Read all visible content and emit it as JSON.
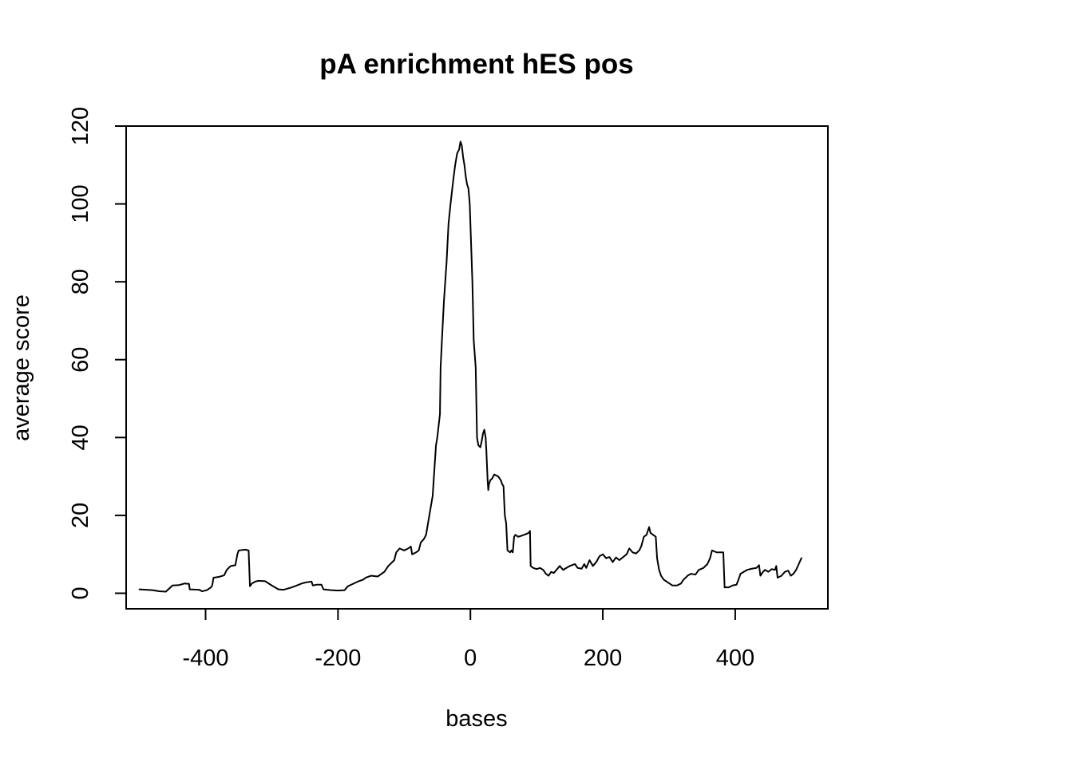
{
  "chart_data": {
    "type": "line",
    "title": "pA enrichment hES pos",
    "xlabel": "bases",
    "ylabel": "average score",
    "xlim": [
      -520,
      540
    ],
    "ylim": [
      -4,
      120
    ],
    "grid": false,
    "legend": "none",
    "x_ticks": [
      {
        "value": -400,
        "label": "-400"
      },
      {
        "value": -200,
        "label": "-200"
      },
      {
        "value": 0,
        "label": "0"
      },
      {
        "value": 200,
        "label": "200"
      },
      {
        "value": 400,
        "label": "400"
      }
    ],
    "y_ticks": [
      {
        "value": 0,
        "label": "0"
      },
      {
        "value": 20,
        "label": "20"
      },
      {
        "value": 40,
        "label": "40"
      },
      {
        "value": 60,
        "label": "60"
      },
      {
        "value": 80,
        "label": "80"
      },
      {
        "value": 100,
        "label": "100"
      },
      {
        "value": 120,
        "label": "120"
      }
    ],
    "series": [
      {
        "color": "#000000",
        "points": [
          [
            -500,
            1
          ],
          [
            -490,
            0.9
          ],
          [
            -480,
            0.8
          ],
          [
            -470,
            0.5
          ],
          [
            -460,
            0.4
          ],
          [
            -455,
            1.2
          ],
          [
            -450,
            2
          ],
          [
            -440,
            2.1
          ],
          [
            -432,
            2.5
          ],
          [
            -425,
            2.4
          ],
          [
            -424,
            1
          ],
          [
            -410,
            0.9
          ],
          [
            -405,
            0.5
          ],
          [
            -398,
            0.8
          ],
          [
            -392,
            1.5
          ],
          [
            -390,
            2
          ],
          [
            -388,
            4
          ],
          [
            -380,
            4.2
          ],
          [
            -372,
            4.6
          ],
          [
            -368,
            6
          ],
          [
            -362,
            7
          ],
          [
            -355,
            7.2
          ],
          [
            -352,
            10
          ],
          [
            -350,
            11
          ],
          [
            -340,
            11.2
          ],
          [
            -335,
            11
          ],
          [
            -333,
            1.8
          ],
          [
            -330,
            2.5
          ],
          [
            -325,
            3
          ],
          [
            -320,
            3.2
          ],
          [
            -310,
            3.1
          ],
          [
            -300,
            2
          ],
          [
            -290,
            1
          ],
          [
            -282,
            0.9
          ],
          [
            -270,
            1.5
          ],
          [
            -262,
            2
          ],
          [
            -255,
            2.5
          ],
          [
            -248,
            2.8
          ],
          [
            -240,
            3
          ],
          [
            -238,
            2
          ],
          [
            -232,
            2.2
          ],
          [
            -225,
            2.2
          ],
          [
            -222,
            1
          ],
          [
            -210,
            0.8
          ],
          [
            -200,
            0.7
          ],
          [
            -190,
            0.8
          ],
          [
            -185,
            1.8
          ],
          [
            -180,
            2.2
          ],
          [
            -170,
            3
          ],
          [
            -162,
            3.5
          ],
          [
            -158,
            4
          ],
          [
            -150,
            4.5
          ],
          [
            -140,
            4.3
          ],
          [
            -130,
            5.5
          ],
          [
            -124,
            7
          ],
          [
            -115,
            8.5
          ],
          [
            -112,
            10.5
          ],
          [
            -107,
            11.5
          ],
          [
            -100,
            11
          ],
          [
            -94,
            11.5
          ],
          [
            -90,
            12
          ],
          [
            -88,
            10
          ],
          [
            -82,
            10.5
          ],
          [
            -78,
            11
          ],
          [
            -75,
            13
          ],
          [
            -70,
            14
          ],
          [
            -67,
            15
          ],
          [
            -62,
            20
          ],
          [
            -57,
            25
          ],
          [
            -52,
            38
          ],
          [
            -50,
            40
          ],
          [
            -46,
            46
          ],
          [
            -45,
            58
          ],
          [
            -43,
            65
          ],
          [
            -40,
            75
          ],
          [
            -36,
            85
          ],
          [
            -33,
            95
          ],
          [
            -30,
            100
          ],
          [
            -26,
            106
          ],
          [
            -23,
            110
          ],
          [
            -20,
            113
          ],
          [
            -17,
            114
          ],
          [
            -15,
            116
          ],
          [
            -13,
            115
          ],
          [
            -11,
            112
          ],
          [
            -9,
            110
          ],
          [
            -7,
            107
          ],
          [
            -5,
            105
          ],
          [
            -3,
            104
          ],
          [
            -1,
            100
          ],
          [
            1,
            90
          ],
          [
            3,
            80
          ],
          [
            5,
            65
          ],
          [
            8,
            58
          ],
          [
            10,
            40
          ],
          [
            12,
            38
          ],
          [
            15,
            37.5
          ],
          [
            17,
            39
          ],
          [
            19,
            41
          ],
          [
            21,
            42
          ],
          [
            23,
            40
          ],
          [
            24,
            37
          ],
          [
            25,
            33
          ],
          [
            26,
            29
          ],
          [
            27,
            26.5
          ],
          [
            28,
            28
          ],
          [
            30,
            29
          ],
          [
            33,
            29.5
          ],
          [
            36,
            30.5
          ],
          [
            42,
            30
          ],
          [
            46,
            29
          ],
          [
            48,
            28
          ],
          [
            50,
            27.5
          ],
          [
            52,
            20
          ],
          [
            54,
            18
          ],
          [
            56,
            11
          ],
          [
            60,
            10.5
          ],
          [
            62,
            11
          ],
          [
            64,
            10.5
          ],
          [
            66,
            14.5
          ],
          [
            68,
            15
          ],
          [
            72,
            14.5
          ],
          [
            76,
            14.7
          ],
          [
            84,
            15.2
          ],
          [
            88,
            15.5
          ],
          [
            90,
            16
          ],
          [
            91,
            7
          ],
          [
            95,
            6.5
          ],
          [
            100,
            6.2
          ],
          [
            105,
            6.5
          ],
          [
            110,
            6
          ],
          [
            114,
            5
          ],
          [
            118,
            4.5
          ],
          [
            122,
            5.5
          ],
          [
            126,
            5.2
          ],
          [
            130,
            6
          ],
          [
            135,
            7
          ],
          [
            140,
            6
          ],
          [
            145,
            6.5
          ],
          [
            150,
            7
          ],
          [
            158,
            7.5
          ],
          [
            162,
            6.5
          ],
          [
            168,
            6.3
          ],
          [
            172,
            7.5
          ],
          [
            175,
            6.5
          ],
          [
            180,
            8.5
          ],
          [
            185,
            7
          ],
          [
            190,
            8
          ],
          [
            195,
            9.5
          ],
          [
            200,
            10
          ],
          [
            205,
            9
          ],
          [
            210,
            9.3
          ],
          [
            215,
            8
          ],
          [
            220,
            9.2
          ],
          [
            225,
            8.5
          ],
          [
            230,
            9.2
          ],
          [
            236,
            10
          ],
          [
            240,
            11.5
          ],
          [
            245,
            10.5
          ],
          [
            250,
            10.2
          ],
          [
            255,
            11
          ],
          [
            258,
            12
          ],
          [
            262,
            14.5
          ],
          [
            266,
            15
          ],
          [
            270,
            17
          ],
          [
            272,
            15.5
          ],
          [
            276,
            15
          ],
          [
            280,
            14.5
          ],
          [
            282,
            9
          ],
          [
            285,
            6
          ],
          [
            288,
            4.5
          ],
          [
            292,
            3.5
          ],
          [
            298,
            2.8
          ],
          [
            305,
            2
          ],
          [
            312,
            2
          ],
          [
            318,
            2.5
          ],
          [
            322,
            3.5
          ],
          [
            328,
            4.5
          ],
          [
            333,
            5
          ],
          [
            340,
            4.8
          ],
          [
            345,
            6
          ],
          [
            352,
            6.5
          ],
          [
            358,
            7.5
          ],
          [
            362,
            9
          ],
          [
            365,
            11
          ],
          [
            372,
            10.5
          ],
          [
            378,
            10.5
          ],
          [
            382,
            10.5
          ],
          [
            384,
            1.5
          ],
          [
            390,
            1.5
          ],
          [
            396,
            2
          ],
          [
            402,
            2.2
          ],
          [
            406,
            4
          ],
          [
            408,
            5
          ],
          [
            413,
            5.5
          ],
          [
            418,
            6
          ],
          [
            425,
            6.3
          ],
          [
            432,
            6.5
          ],
          [
            436,
            7.2
          ],
          [
            438,
            4.5
          ],
          [
            442,
            5.5
          ],
          [
            445,
            6
          ],
          [
            450,
            5.5
          ],
          [
            455,
            6.2
          ],
          [
            460,
            6
          ],
          [
            462,
            7
          ],
          [
            464,
            4
          ],
          [
            470,
            4.5
          ],
          [
            475,
            5.5
          ],
          [
            480,
            5.8
          ],
          [
            484,
            4.5
          ],
          [
            488,
            5
          ],
          [
            492,
            6
          ],
          [
            496,
            7.5
          ],
          [
            500,
            9
          ]
        ]
      }
    ]
  }
}
